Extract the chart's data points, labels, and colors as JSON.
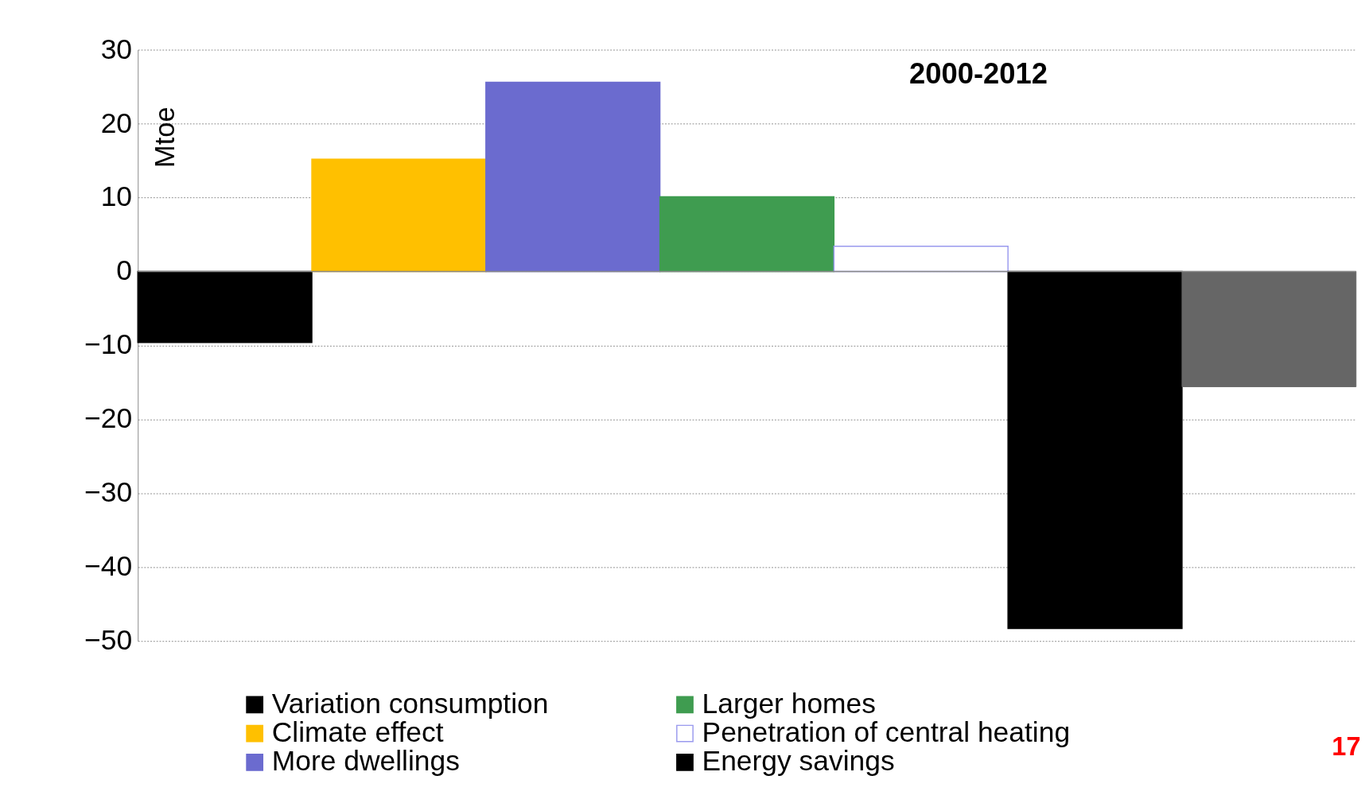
{
  "chart_data": {
    "type": "bar",
    "title": "2000-2012",
    "ylabel": "Mtoe",
    "categories": [
      null,
      null,
      null,
      null,
      null,
      null,
      null
    ],
    "series": [
      {
        "name": "Variation consumption",
        "color": "#000000",
        "values": [
          -9.6,
          null,
          null,
          null,
          null,
          null,
          null
        ]
      },
      {
        "name": "Climate effect",
        "color": "#ffc000",
        "values": [
          null,
          15.2,
          null,
          null,
          null,
          null,
          null
        ]
      },
      {
        "name": "More dwellings",
        "color": "#6b6bcf",
        "values": [
          null,
          null,
          25.6,
          null,
          null,
          null,
          null
        ]
      },
      {
        "name": "Larger homes",
        "color": "#3f9c50",
        "values": [
          null,
          null,
          null,
          10.1,
          null,
          null,
          null
        ]
      },
      {
        "name": "Penetration of central heating",
        "color": "#ffffff",
        "values": [
          null,
          null,
          null,
          null,
          3.4,
          null,
          null
        ]
      },
      {
        "name": "Energy savings",
        "color": "#000000",
        "values": [
          null,
          null,
          null,
          null,
          null,
          -48.3,
          null
        ]
      },
      {
        "color": "#666666",
        "values": [
          null,
          null,
          null,
          null,
          null,
          null,
          -15.6
        ]
      }
    ],
    "ylim": [
      -50,
      30
    ],
    "yticks": [
      -50,
      -40,
      -30,
      -20,
      -10,
      0,
      10,
      20,
      30
    ],
    "grid": "y",
    "legend": "bottom",
    "tick_labels": "y",
    "annotations": [
      "17"
    ]
  }
}
